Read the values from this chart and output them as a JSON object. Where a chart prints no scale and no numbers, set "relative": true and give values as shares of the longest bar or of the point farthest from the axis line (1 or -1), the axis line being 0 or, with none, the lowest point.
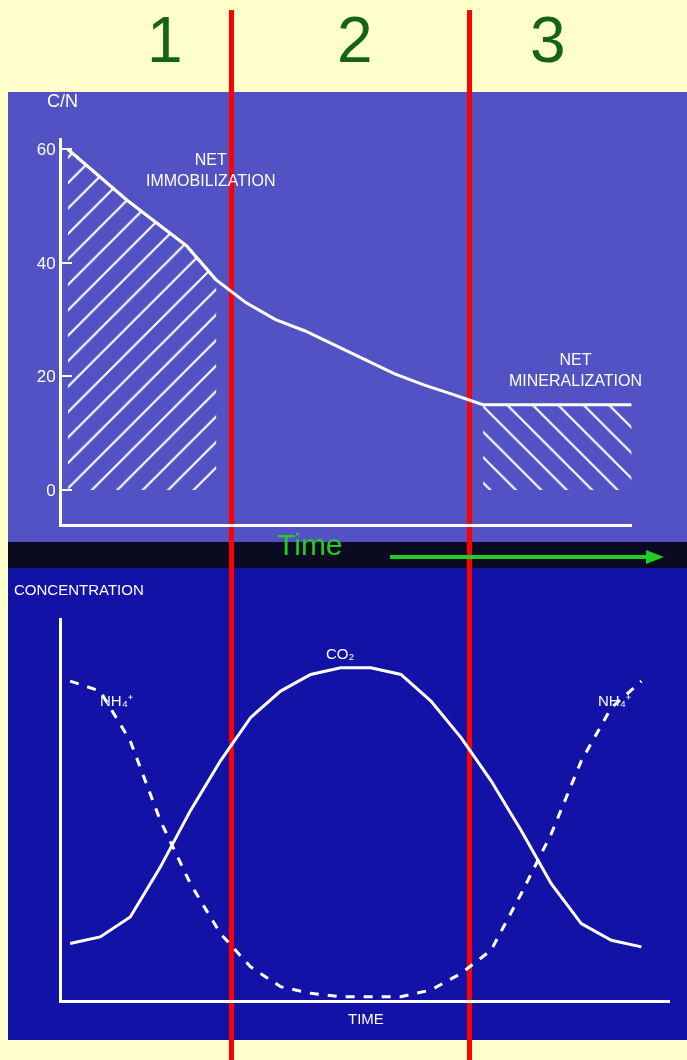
{
  "chart_data": [
    {
      "type": "line",
      "xlabel": "Time",
      "ylabel": "C/N",
      "categories": [
        null,
        null,
        null,
        null,
        null,
        null,
        null,
        null,
        null,
        null,
        null,
        null,
        null,
        null,
        null,
        null,
        null,
        null,
        null,
        null
      ],
      "ylim": [
        -6,
        62
      ],
      "yticks": [
        0,
        20,
        40,
        60
      ],
      "tick_labels": "y",
      "grid": false,
      "series": [
        {
          "color": "#ffffff",
          "values": [
            60,
            55.5,
            51,
            47,
            43,
            37,
            33,
            30,
            28,
            25.5,
            23,
            20.5,
            18.5,
            16.8,
            15,
            null,
            null,
            null,
            null,
            null
          ]
        },
        {
          "type": "area",
          "color": "#ffffff",
          "values": [
            60,
            55.5,
            51,
            47,
            43,
            37,
            null,
            null,
            null,
            null,
            null,
            null,
            null,
            null,
            null,
            null,
            null,
            null,
            null,
            null
          ]
        },
        {
          "type": "area",
          "color": "#ffffff",
          "values": [
            null,
            null,
            null,
            null,
            null,
            null,
            null,
            null,
            null,
            null,
            null,
            null,
            null,
            null,
            15,
            15,
            15,
            15,
            15,
            15
          ]
        }
      ],
      "annotations": [
        "1",
        "2",
        "3",
        "NET\nIMMOBILIZATION",
        "NET\nMINERALIZATION"
      ]
    },
    {
      "type": "line",
      "xlabel": "TIME",
      "ylabel": "CONCENTRATION",
      "relative": true,
      "tick_labels": false,
      "grid": false,
      "categories": [
        null,
        null,
        null,
        null,
        null,
        null,
        null,
        null,
        null,
        null,
        null,
        null,
        null,
        null,
        null,
        null,
        null,
        null,
        null,
        null
      ],
      "series": [
        {
          "name": "NH₄⁺",
          "color": "#ffffff",
          "line_style": "dashed",
          "values": [
            0.96,
            0.93,
            0.78,
            0.54,
            0.35,
            0.2,
            0.1,
            0.04,
            0.02,
            0.01,
            0.01,
            0.01,
            0.03,
            0.08,
            0.15,
            0.32,
            0.5,
            0.72,
            0.88,
            0.96
          ]
        },
        {
          "name": "CO₂",
          "color": "#ffffff",
          "line_style": "solid",
          "values": [
            0.17,
            0.19,
            0.25,
            0.4,
            0.57,
            0.72,
            0.85,
            0.93,
            0.98,
            1,
            1,
            0.98,
            0.9,
            0.79,
            0.66,
            0.51,
            0.35,
            0.23,
            0.18,
            0.16
          ]
        }
      ]
    }
  ]
}
